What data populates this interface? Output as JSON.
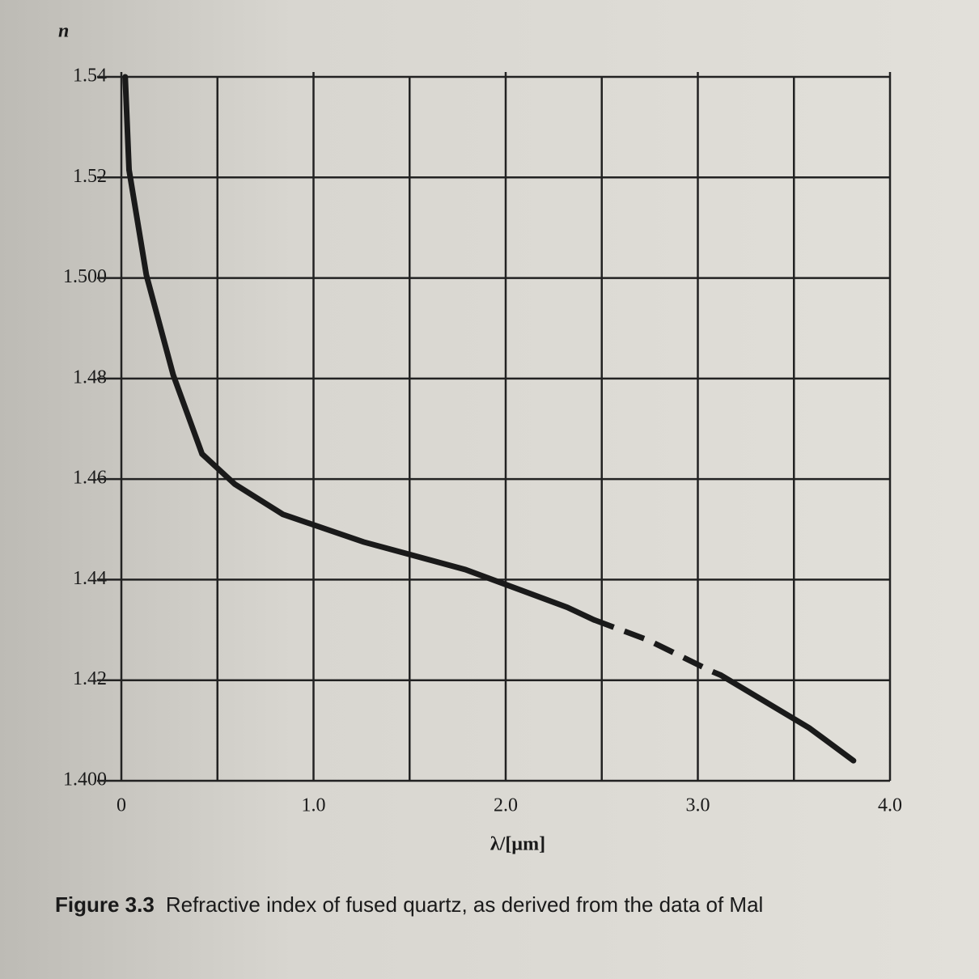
{
  "chart_data": {
    "type": "line",
    "ylabel": "n",
    "xlabel": "λ/[µm]",
    "caption_label": "Figure 3.3",
    "caption": "Refractive index of fused quartz, as derived from the data of Mal",
    "xlim": [
      0,
      4
    ],
    "ylim": [
      1.4,
      1.54
    ],
    "xticks": [
      0,
      {
        "value": 1,
        "label": "1.0"
      },
      {
        "value": 2,
        "label": "2.0"
      },
      {
        "value": 3,
        "label": "3.0"
      },
      {
        "value": 4,
        "label": "4.0"
      }
    ],
    "xminor": [
      0.5,
      1.5,
      2.5,
      3.5
    ],
    "yticks": [
      {
        "value": 1.4,
        "label": "1.400"
      },
      1.42,
      1.44,
      1.46,
      1.48,
      {
        "value": 1.5,
        "label": "1.500"
      },
      1.52,
      1.54
    ],
    "grid": true,
    "color": "#1a1a1a",
    "lines": [
      {
        "dashed": false,
        "x": [
          0.02,
          0.04,
          0.13,
          0.27,
          0.42,
          0.59,
          0.84,
          1.26,
          1.79,
          2.32,
          2.46
        ],
        "values": [
          1.54,
          1.5215,
          1.5006,
          1.4807,
          1.465,
          1.459,
          1.453,
          1.4475,
          1.442,
          1.4345,
          1.432
        ]
      },
      {
        "dashed": true,
        "x": [
          2.46,
          2.74,
          3.07,
          3.12
        ],
        "values": [
          1.432,
          1.428,
          1.4218,
          1.421
        ]
      },
      {
        "dashed": false,
        "x": [
          3.12,
          3.58,
          3.81
        ],
        "values": [
          1.421,
          1.4105,
          1.404
        ]
      }
    ]
  }
}
